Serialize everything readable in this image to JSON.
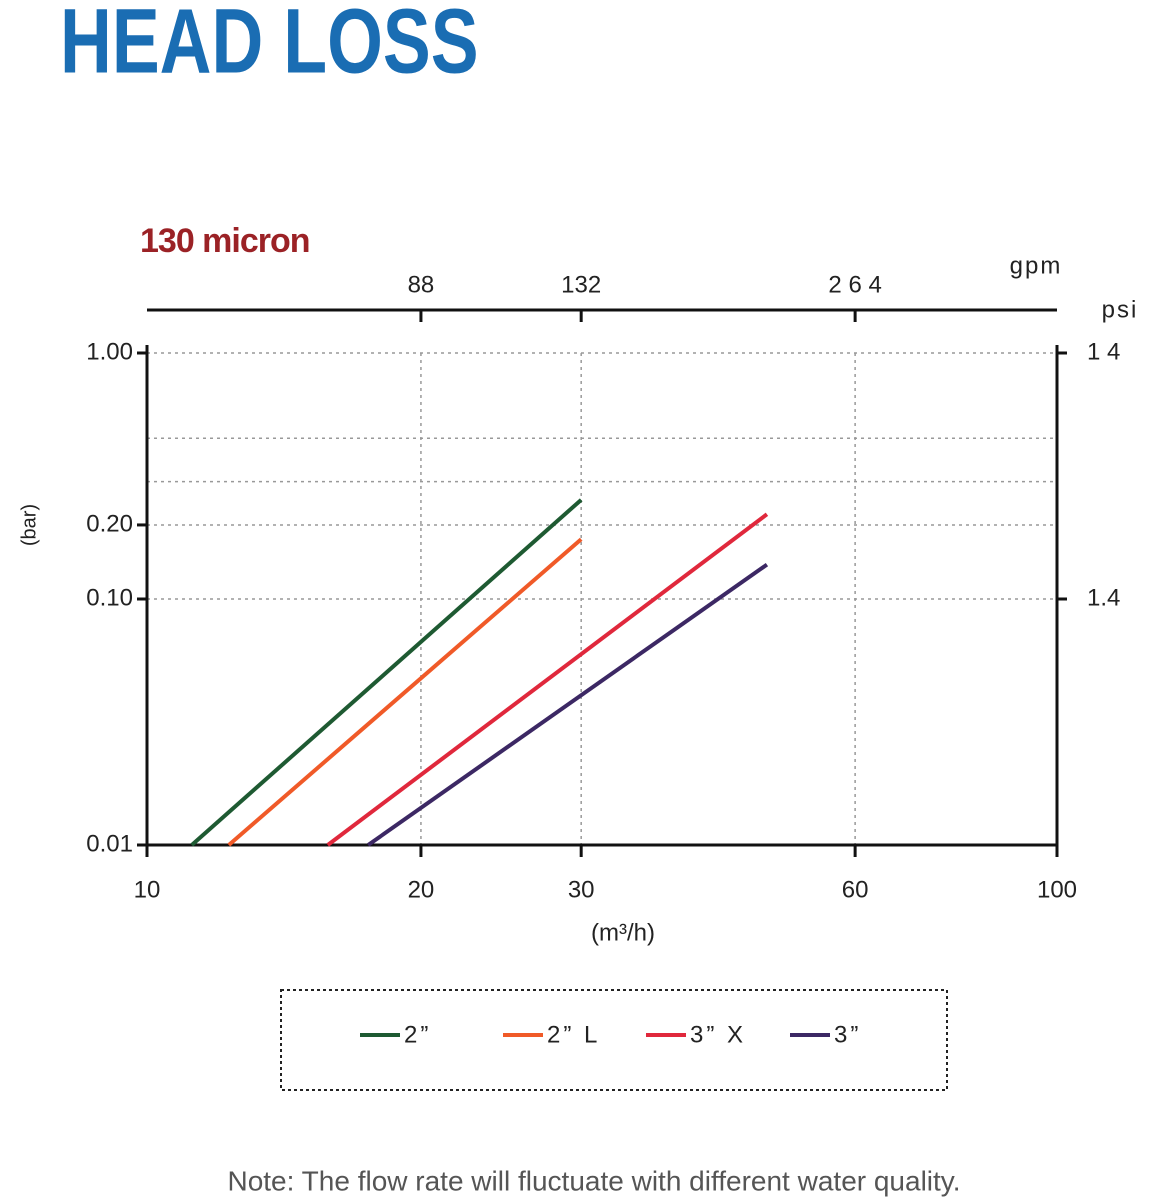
{
  "chart_data": {
    "type": "line",
    "title": "HEAD LOSS",
    "subtitle": "130 micron",
    "xlabel": "(m³/h)",
    "ylabel": "(bar)",
    "x2label": "gpm",
    "y2label": "psi",
    "note": "Note: The flow rate will fluctuate with different water quality.",
    "xscale": "log",
    "yscale": "log",
    "xlim": [
      10,
      100
    ],
    "xticks": [
      10,
      20,
      30,
      60,
      100
    ],
    "ylim": [
      0.01,
      1
    ],
    "yticks": [
      {
        "value": 1,
        "label": "1.00"
      },
      {
        "value": 0.2,
        "label": "0.20"
      },
      {
        "value": 0.1,
        "label": "0.10"
      },
      0.01
    ],
    "yminorgrid": [
      0.3,
      0.45
    ],
    "x2lim": [
      44,
      440
    ],
    "x2ticks": [
      88,
      132,
      {
        "value": 264,
        "label": "2 6 4"
      }
    ],
    "y2lim": [
      0.14,
      14
    ],
    "y2ticks": [
      {
        "value": 14,
        "label": "1 4"
      },
      1.4
    ],
    "grid": true,
    "series": [
      {
        "name": "2”",
        "color": "#1e5a32",
        "x": [
          11.2,
          30
        ],
        "values": [
          0.01,
          0.253
        ]
      },
      {
        "name": "2” L",
        "color": "#f05a28",
        "x": [
          12.3,
          30
        ],
        "values": [
          0.01,
          0.175
        ]
      },
      {
        "name": "3” X",
        "color": "#e0283c",
        "x": [
          15.8,
          48
        ],
        "values": [
          0.01,
          0.221
        ]
      },
      {
        "name": "3”",
        "color": "#3c2864",
        "x": [
          17.5,
          48
        ],
        "values": [
          0.01,
          0.138
        ]
      }
    ]
  }
}
